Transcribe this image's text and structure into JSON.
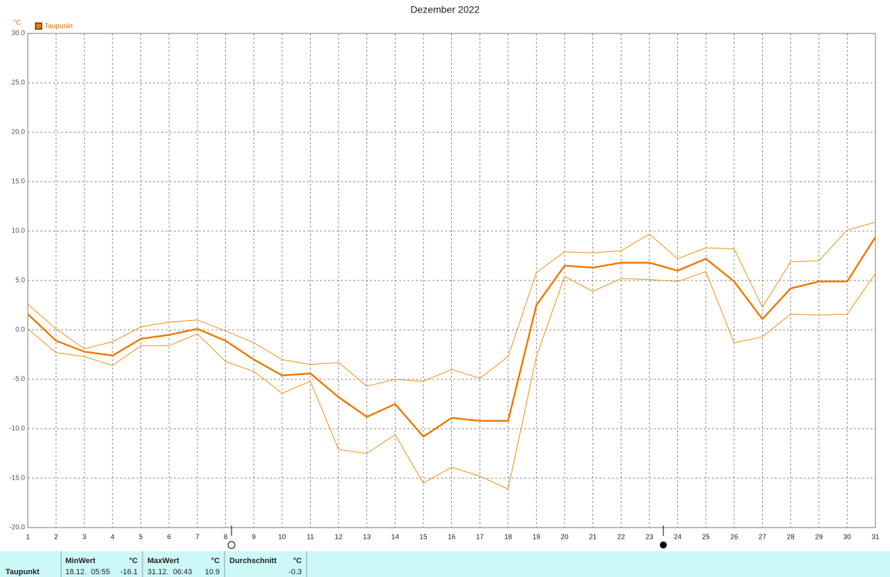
{
  "chart_data": {
    "type": "line",
    "title": "Dezember 2022",
    "y_unit": "°C",
    "x": [
      1,
      2,
      3,
      4,
      5,
      6,
      7,
      8,
      9,
      10,
      11,
      12,
      13,
      14,
      15,
      16,
      17,
      18,
      19,
      20,
      21,
      22,
      23,
      24,
      25,
      26,
      27,
      28,
      29,
      30,
      31
    ],
    "xlim": [
      1,
      31
    ],
    "xticks": [
      1,
      2,
      3,
      4,
      5,
      6,
      7,
      8,
      9,
      10,
      11,
      12,
      13,
      14,
      15,
      16,
      17,
      18,
      19,
      20,
      21,
      22,
      23,
      24,
      25,
      26,
      27,
      28,
      29,
      30,
      31
    ],
    "ylim": [
      -20,
      30
    ],
    "yticks": [
      {
        "value": -20,
        "label": "-20.0"
      },
      {
        "value": -15,
        "label": "-15.0"
      },
      {
        "value": -10,
        "label": "-10.0"
      },
      {
        "value": -5,
        "label": "-5.0"
      },
      {
        "value": 0,
        "label": "0.0"
      },
      {
        "value": 5,
        "label": "5.0"
      },
      {
        "value": 10,
        "label": "10.0"
      },
      {
        "value": 15,
        "label": "15.0"
      },
      {
        "value": 20,
        "label": "20.0"
      },
      {
        "value": 25,
        "label": "25.0"
      },
      {
        "value": 30,
        "label": "30.0"
      }
    ],
    "grid": true,
    "series": [
      {
        "name": "Taupunkt",
        "color": "#f07800",
        "values": [
          1.6,
          -1.1,
          -2.2,
          -2.6,
          -0.9,
          -0.5,
          0.1,
          -1.1,
          -3.0,
          -4.6,
          -4.4,
          -6.8,
          -8.8,
          -7.5,
          -10.8,
          -8.9,
          -9.2,
          -9.2,
          2.5,
          6.5,
          6.3,
          6.8,
          6.8,
          6.0,
          7.2,
          4.9,
          1.1,
          4.2,
          4.9,
          4.9,
          9.4
        ]
      },
      {
        "color": "#f08a10",
        "values": [
          2.6,
          0.1,
          -1.9,
          -1.2,
          0.3,
          0.8,
          1.0,
          -0.1,
          -1.3,
          -3.0,
          -3.5,
          -3.3,
          -5.7,
          -5.0,
          -5.2,
          -4.0,
          -4.9,
          -2.7,
          5.8,
          7.9,
          7.8,
          8.0,
          9.7,
          7.2,
          8.3,
          8.2,
          2.3,
          6.9,
          7.0,
          10.1,
          10.9
        ]
      },
      {
        "color": "#f08a10",
        "values": [
          0.1,
          -2.3,
          -2.7,
          -3.6,
          -1.6,
          -1.6,
          -0.4,
          -3.2,
          -4.2,
          -6.4,
          -5.2,
          -12.1,
          -12.5,
          -10.6,
          -15.5,
          -13.9,
          -14.8,
          -16.1,
          -2.7,
          5.4,
          3.9,
          5.2,
          5.1,
          4.9,
          5.9,
          -1.3,
          -0.7,
          1.6,
          1.5,
          1.6,
          5.7
        ]
      }
    ]
  },
  "stats": {
    "series_label": "Taupunkt",
    "columns": [
      {
        "title": "MinWert",
        "unit": "°C",
        "time": "18.12.  05:55",
        "value": -16.1
      },
      {
        "title": "MaxWert",
        "unit": "°C",
        "time": "31.12.  06:43",
        "value": 10.9
      },
      {
        "title": "Durchschnitt",
        "unit": "°C",
        "value": -0.3
      }
    ]
  }
}
